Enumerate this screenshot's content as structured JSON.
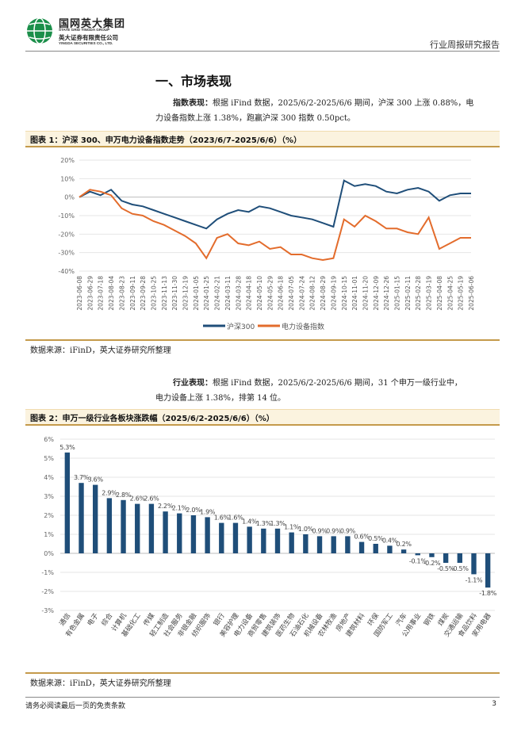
{
  "header": {
    "company_cn": "国网英大集团",
    "company_en1": "STATE GRID YINGDA GROUP",
    "company_cn2": "英大证券有限责任公司",
    "company_en2": "YINGDA SECURITIES CO., LTD.",
    "report_type": "行业周报研究报告"
  },
  "section": {
    "title": "一、市场表现"
  },
  "para1": {
    "lead": "指数表现：",
    "line1": "根据 iFind 数据，2025/6/2-2025/6/6 期间，沪深 300 上涨 0.88%，电",
    "line2": "力设备指数上涨 1.38%，跑赢沪深 300 指数 0.50pct。"
  },
  "fig1": {
    "title": "图表 1：沪深 300、申万电力设备指数走势（2023/6/7-2025/6/6）（%）",
    "source": "数据来源：iFinD，英大证券研究所整理"
  },
  "para2": {
    "lead": "行业表现：",
    "line1": "根据 iFind 数据，2025/6/2-2025/6/6 期间，31 个申万一级行业中，",
    "line2": "电力设备上涨 1.38%，排第 14 位。"
  },
  "fig2": {
    "title": "图表 2：申万一级行业各板块涨跌幅（2025/6/2-2025/6/6）（%）",
    "source": "数据来源：iFinD，英大证券研究所整理"
  },
  "footer": {
    "disclaimer": "请务必阅读最后一页的免责条款",
    "page": "3"
  },
  "chart_data": [
    {
      "type": "line",
      "title": "沪深 300、申万电力设备指数走势（2023/6/7-2025/6/6）（%）",
      "ylabel": "%",
      "ylim": [
        -40,
        20
      ],
      "yticks": [
        "20%",
        "10%",
        "0%",
        "-10%",
        "-20%",
        "-30%",
        "-40%"
      ],
      "x": [
        "2023-06-08",
        "2023-06-29",
        "2023-07-18",
        "2023-08-04",
        "2023-08-23",
        "2023-09-11",
        "2023-09-28",
        "2023-10-25",
        "2023-11-13",
        "2023-11-30",
        "2023-12-19",
        "2024-01-05",
        "2024-01-25",
        "2024-02-21",
        "2024-03-11",
        "2024-03-28",
        "2024-04-18",
        "2024-05-10",
        "2024-05-29",
        "2024-06-18",
        "2024-07-05",
        "2024-07-24",
        "2024-08-12",
        "2024-08-29",
        "2024-09-19",
        "2024-10-15",
        "2024-11-01",
        "2024-11-20",
        "2024-12-09",
        "2024-12-26",
        "2025-01-15",
        "2025-02-11",
        "2025-02-28",
        "2025-03-19",
        "2025-04-08",
        "2025-04-25",
        "2025-05-19",
        "2025-06-06"
      ],
      "series": [
        {
          "name": "沪深300",
          "color": "#1f4e79",
          "values": [
            0,
            3,
            1,
            4,
            -2,
            -4,
            -5,
            -7,
            -9,
            -11,
            -13,
            -15,
            -17,
            -12,
            -9,
            -7,
            -8,
            -5,
            -6,
            -8,
            -10,
            -11,
            -12,
            -14,
            -16,
            9,
            6,
            7,
            6,
            3,
            2,
            4,
            5,
            3,
            -2,
            1,
            2,
            2
          ]
        },
        {
          "name": "电力设备指数",
          "color": "#e36c2c",
          "values": [
            0,
            4,
            3,
            1,
            -6,
            -9,
            -10,
            -13,
            -15,
            -18,
            -21,
            -25,
            -33,
            -22,
            -20,
            -25,
            -26,
            -24,
            -28,
            -27,
            -31,
            -31,
            -33,
            -34,
            -33,
            -12,
            -16,
            -10,
            -13,
            -17,
            -17,
            -19,
            -20,
            -11,
            -28,
            -25,
            -22,
            -22
          ]
        }
      ],
      "legend": "bottom"
    },
    {
      "type": "bar",
      "title": "申万一级行业各板块涨跌幅（2025/6/2-2025/6/6）（%）",
      "ylim": [
        -3,
        6
      ],
      "yticks": [
        "6%",
        "5%",
        "4%",
        "3%",
        "2%",
        "1%",
        "0%",
        "-1%",
        "-2%",
        "-3%"
      ],
      "color": "#1f4e79",
      "categories": [
        "通信",
        "有色金属",
        "电子",
        "综合",
        "计算机",
        "基础化工",
        "传媒",
        "轻工制造",
        "社会服务",
        "非银金融",
        "纺织服饰",
        "银行",
        "美容护理",
        "电力设备",
        "商贸零售",
        "建筑装饰",
        "医药生物",
        "石油石化",
        "机械设备",
        "农林牧渔",
        "房地产",
        "建筑材料",
        "环保",
        "国防军工",
        "汽车",
        "公用事业",
        "钢铁",
        "煤炭",
        "交通运输",
        "食品饮料",
        "家用电器"
      ],
      "values": [
        5.3,
        3.7,
        3.6,
        2.9,
        2.8,
        2.6,
        2.6,
        2.2,
        2.1,
        2.0,
        1.9,
        1.6,
        1.6,
        1.4,
        1.3,
        1.3,
        1.1,
        1.0,
        0.9,
        0.9,
        0.9,
        0.6,
        0.5,
        0.4,
        0.2,
        -0.1,
        -0.2,
        -0.5,
        -0.5,
        -1.1,
        -1.8
      ],
      "labels": [
        "5.3%",
        "3.7%",
        "3.6%",
        "2.9%",
        "2.8%",
        "2.6%",
        "2.6%",
        "2.2%",
        "2.1%",
        "2.0%",
        "1.9%",
        "1.6%",
        "1.6%",
        "1.4%",
        "1.3%",
        "1.3%",
        "1.1%",
        "1.0%",
        "0.9%",
        "0.9%",
        "0.9%",
        "0.6%",
        "0.5%",
        "0.4%",
        "0.2%",
        "-0.1%",
        "-0.2%",
        "-0.5%",
        "-0.5%",
        "-1.1%",
        "-1.8%"
      ]
    }
  ]
}
